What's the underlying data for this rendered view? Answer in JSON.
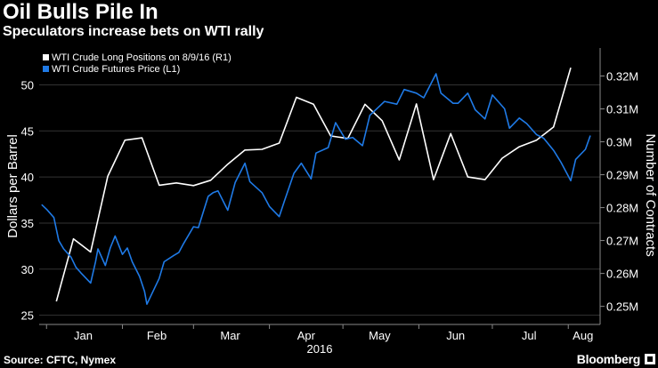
{
  "title": "Oil Bulls Pile In",
  "subtitle": "Speculators increase bets on WTI rally",
  "source": "Source: CFTC, Nymex",
  "brand": "Bloomberg",
  "colors": {
    "background": "#000000",
    "wti_price": "#1f7ae6",
    "long_positions": "#ffffff",
    "grid": "#333333"
  },
  "chart_data": {
    "type": "line",
    "x_tick_labels": [
      "Jan",
      "Feb",
      "Mar",
      "Apr",
      "May",
      "Jun",
      "Jul",
      "Aug"
    ],
    "x_year_label": "2016",
    "ylabel_left": "Dollars per Barrel",
    "ylabel_right": "Number of Contracts",
    "ylim_left": [
      24,
      54
    ],
    "ylim_right": [
      0.2445,
      0.3285
    ],
    "yticks_left": [
      25,
      30,
      35,
      40,
      45,
      50
    ],
    "yticks_right": [
      0.25,
      0.26,
      0.27,
      0.28,
      0.29,
      0.3,
      0.31,
      0.32
    ],
    "ytick_labels_right": [
      "0.25M",
      "0.26M",
      "0.27M",
      "0.28M",
      "0.29M",
      "0.3M",
      "0.31M",
      "0.32M"
    ],
    "legend": {
      "placement": "top-left"
    },
    "grid": true,
    "series": [
      {
        "name": "WTI Crude Long Positions on 8/9/16 (R1)",
        "axis": "right",
        "color": "#ffffff",
        "x": [
          "2016-01-05",
          "2016-01-12",
          "2016-01-19",
          "2016-01-26",
          "2016-02-02",
          "2016-02-09",
          "2016-02-16",
          "2016-02-23",
          "2016-03-01",
          "2016-03-08",
          "2016-03-15",
          "2016-03-22",
          "2016-03-29",
          "2016-04-05",
          "2016-04-12",
          "2016-04-19",
          "2016-04-26",
          "2016-05-03",
          "2016-05-10",
          "2016-05-17",
          "2016-05-24",
          "2016-05-31",
          "2016-06-07",
          "2016-06-14",
          "2016-06-21",
          "2016-06-28",
          "2016-07-05",
          "2016-07-12",
          "2016-07-19",
          "2016-07-26",
          "2016-08-02",
          "2016-08-09"
        ],
        "values": [
          0.2515,
          0.2705,
          0.2665,
          0.2895,
          0.3005,
          0.3012,
          0.2868,
          0.2875,
          0.2867,
          0.2883,
          0.2932,
          0.2975,
          0.2977,
          0.2996,
          0.3135,
          0.3114,
          0.3018,
          0.301,
          0.3114,
          0.3064,
          0.2945,
          0.3115,
          0.2885,
          0.3025,
          0.2893,
          0.2885,
          0.295,
          0.2985,
          0.3005,
          0.3045,
          0.3225,
          null
        ]
      },
      {
        "name": "WTI Crude Futures Price (L1)",
        "axis": "left",
        "color": "#1f7ae6",
        "x": [
          "2015-12-30",
          "2016-01-01",
          "2016-01-04",
          "2016-01-06",
          "2016-01-08",
          "2016-01-11",
          "2016-01-13",
          "2016-01-15",
          "2016-01-19",
          "2016-01-21",
          "2016-01-22",
          "2016-01-25",
          "2016-01-27",
          "2016-01-29",
          "2016-02-01",
          "2016-02-03",
          "2016-02-05",
          "2016-02-08",
          "2016-02-10",
          "2016-02-11",
          "2016-02-16",
          "2016-02-18",
          "2016-02-22",
          "2016-02-24",
          "2016-02-26",
          "2016-03-01",
          "2016-03-03",
          "2016-03-07",
          "2016-03-09",
          "2016-03-11",
          "2016-03-15",
          "2016-03-18",
          "2016-03-22",
          "2016-03-24",
          "2016-03-29",
          "2016-04-01",
          "2016-04-05",
          "2016-04-07",
          "2016-04-11",
          "2016-04-14",
          "2016-04-18",
          "2016-04-20",
          "2016-04-25",
          "2016-04-28",
          "2016-05-02",
          "2016-05-05",
          "2016-05-09",
          "2016-05-12",
          "2016-05-16",
          "2016-05-18",
          "2016-05-23",
          "2016-05-26",
          "2016-05-31",
          "2016-06-03",
          "2016-06-08",
          "2016-06-10",
          "2016-06-15",
          "2016-06-17",
          "2016-06-21",
          "2016-06-24",
          "2016-06-28",
          "2016-07-01",
          "2016-07-06",
          "2016-07-08",
          "2016-07-12",
          "2016-07-15",
          "2016-07-19",
          "2016-07-22",
          "2016-07-26",
          "2016-07-29",
          "2016-08-02",
          "2016-08-04",
          "2016-08-08",
          "2016-08-10"
        ],
        "values": [
          37.0,
          36.5,
          35.6,
          33.1,
          32.2,
          31.3,
          30.2,
          29.6,
          28.5,
          30.8,
          32.2,
          30.4,
          32.3,
          33.6,
          31.6,
          32.3,
          30.8,
          29.2,
          27.6,
          26.2,
          29.0,
          30.8,
          31.5,
          31.8,
          32.8,
          34.6,
          34.5,
          37.9,
          38.3,
          38.5,
          36.4,
          39.4,
          41.5,
          39.5,
          38.3,
          36.8,
          35.7,
          37.3,
          40.4,
          41.5,
          39.8,
          42.6,
          43.2,
          45.9,
          44.1,
          44.3,
          43.4,
          46.7,
          47.7,
          48.2,
          47.9,
          49.5,
          49.1,
          48.6,
          51.2,
          49.1,
          48.0,
          48.0,
          49.1,
          47.3,
          46.3,
          48.9,
          47.4,
          45.3,
          46.4,
          45.8,
          44.6,
          44.2,
          42.9,
          41.6,
          39.6,
          41.9,
          43.0,
          44.5
        ]
      }
    ]
  }
}
